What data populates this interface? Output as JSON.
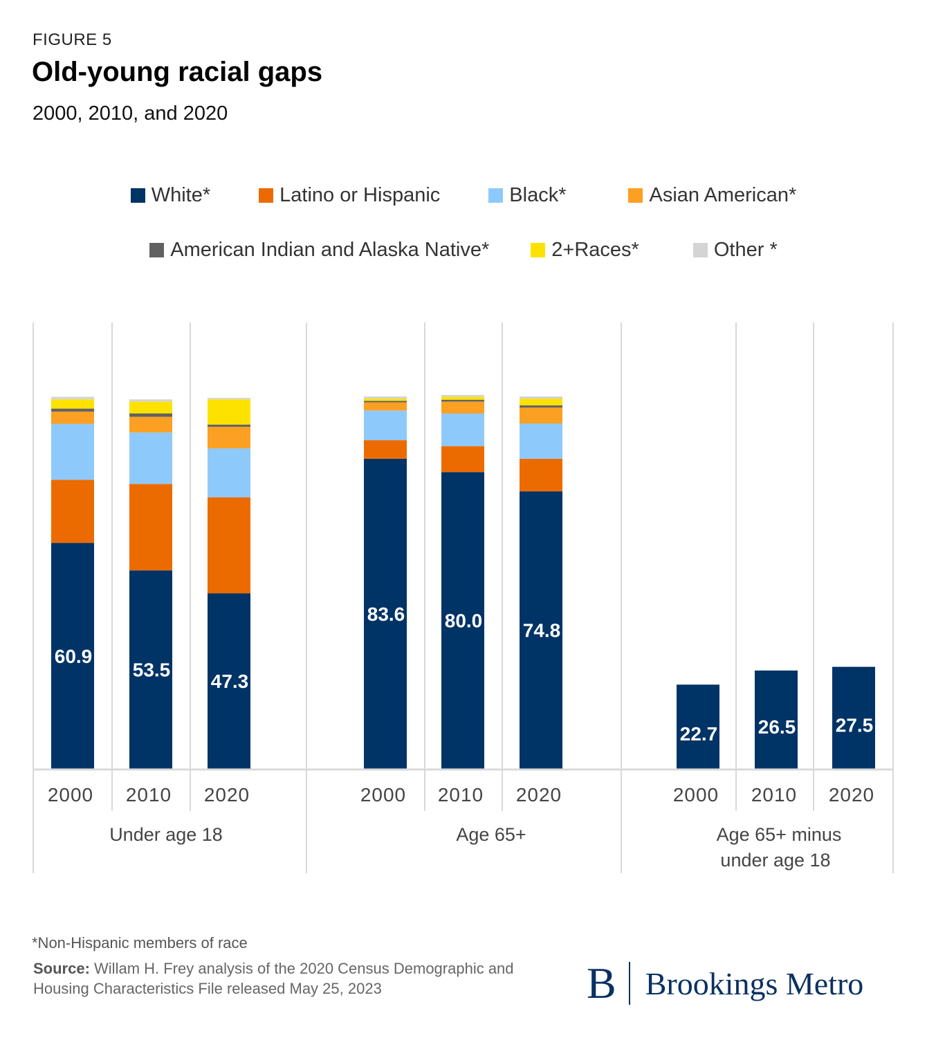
{
  "header": {
    "figure_label": "FIGURE 5",
    "title": "Old-young racial gaps",
    "subtitle": "2000, 2010, and 2020"
  },
  "legend": {
    "row1": [
      {
        "name": "White*",
        "color": "#003366"
      },
      {
        "name": "Latino or Hispanic",
        "color": "#ec6b00"
      },
      {
        "name": "Black*",
        "color": "#8ec9fb"
      },
      {
        "name": "Asian American*",
        "color": "#fba022"
      }
    ],
    "row2": [
      {
        "name": "American Indian and Alaska Native*",
        "color": "#616161"
      },
      {
        "name": "2+Races*",
        "color": "#fde200"
      },
      {
        "name": "Other *",
        "color": "#d4d4d4"
      }
    ]
  },
  "chart_data": {
    "type": "bar",
    "stacked": true,
    "grid": true,
    "legend_position": "top",
    "ylim": [
      0,
      100
    ],
    "x_tick_labels": [
      "2000",
      "2010",
      "2020",
      "2000",
      "2010",
      "2020",
      "2000",
      "2010",
      "2020"
    ],
    "group_labels": [
      "Under age 18",
      "Age 65+",
      "Age 65+ minus\nunder age 18"
    ],
    "series": [
      {
        "name": "White*",
        "color": "#003366",
        "values": [
          60.9,
          53.5,
          47.3,
          83.6,
          80.0,
          74.8,
          22.7,
          26.5,
          27.5
        ],
        "labels": [
          "60.9",
          "53.5",
          "47.3",
          "83.6",
          "80.0",
          "74.8",
          "22.7",
          "26.5",
          "27.5"
        ]
      },
      {
        "name": "Latino or Hispanic",
        "color": "#ec6b00",
        "values": [
          17.0,
          23.3,
          25.9,
          5.0,
          7.0,
          8.8,
          0,
          0,
          0
        ]
      },
      {
        "name": "Black*",
        "color": "#8ec9fb",
        "values": [
          15.1,
          13.9,
          13.2,
          8.0,
          8.8,
          9.5,
          0,
          0,
          0
        ]
      },
      {
        "name": "Asian American*",
        "color": "#fba022",
        "values": [
          3.3,
          4.2,
          5.8,
          2.2,
          3.2,
          4.3,
          0,
          0,
          0
        ]
      },
      {
        "name": "American Indian and Alaska Native*",
        "color": "#616161",
        "values": [
          0.8,
          0.9,
          0.6,
          0.4,
          0.5,
          0.6,
          0,
          0,
          0
        ]
      },
      {
        "name": "2+Races*",
        "color": "#fde200",
        "values": [
          2.5,
          3.2,
          6.8,
          0.6,
          0.8,
          1.8,
          0,
          0,
          0
        ]
      },
      {
        "name": "Other *",
        "color": "#d4d4d4",
        "values": [
          0.7,
          0.6,
          0.4,
          0.6,
          0.5,
          0.6,
          0,
          0,
          0
        ]
      }
    ]
  },
  "footer": {
    "footnote": "*Non-Hispanic members of race",
    "source_label": "Source:",
    "source_text": " Willam H. Frey analysis of the 2020 Census Demographic and Housing Characteristics File released May 25, 2023",
    "logo_letter": "B",
    "logo_text": "Brookings Metro"
  }
}
